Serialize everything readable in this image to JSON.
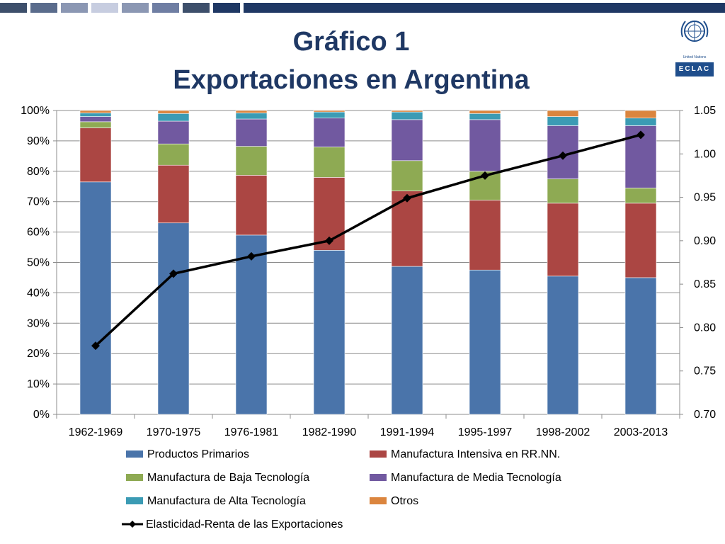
{
  "header": {
    "bar_colors": [
      "#3d4f6b",
      "#5a6c8c",
      "#8b97b3",
      "#c7cde0",
      "#8b97b3",
      "#6f7ea3",
      "#3d4f6b",
      "#1f3864",
      "#1f3864"
    ],
    "logo_caption": "United Nations",
    "logo_label": "ECLAC"
  },
  "title": {
    "line1": "Gráfico 1",
    "line2": "Exportaciones en Argentina"
  },
  "chart_data": {
    "type": "bar",
    "stacked": true,
    "categories": [
      "1962-1969",
      "1970-1975",
      "1976-1981",
      "1982-1990",
      "1991-1994",
      "1995-1997",
      "1998-2002",
      "2003-2013"
    ],
    "series": [
      {
        "name": "Productos Primarios",
        "color": "#4a74aa",
        "values": [
          76.5,
          63,
          59,
          54,
          48.7,
          47.5,
          45.5,
          45
        ]
      },
      {
        "name": "Manufactura Intensiva en RR.NN.",
        "color": "#ab4643",
        "values": [
          17.8,
          19,
          19.7,
          24,
          24.8,
          23,
          24,
          24.5
        ]
      },
      {
        "name": "Manufactura de Baja Tecnología",
        "color": "#8eaa53",
        "values": [
          2,
          7,
          9.5,
          10,
          10,
          9.5,
          8,
          5
        ]
      },
      {
        "name": "Manufactura de Media Tecnología",
        "color": "#7159a0",
        "values": [
          1.7,
          7.5,
          9,
          9.5,
          13.5,
          17,
          17.5,
          20.5
        ]
      },
      {
        "name": "Manufactura de Alta Tecnología",
        "color": "#3b9bb4",
        "values": [
          1.2,
          2.5,
          2,
          2,
          2.5,
          2,
          3,
          2.5
        ]
      },
      {
        "name": "Otros",
        "color": "#db853e",
        "values": [
          0.8,
          1,
          0.8,
          0.5,
          0.5,
          1,
          2,
          2.5
        ]
      }
    ],
    "line_series": {
      "name": "Elasticidad-Renta de las Exportaciones",
      "color": "#000000",
      "axis": "right",
      "values": [
        0.779,
        0.862,
        0.882,
        0.9,
        0.949,
        0.975,
        0.998,
        1.022
      ]
    },
    "y_left": {
      "min": 0,
      "max": 100,
      "step": 10,
      "tick_labels": [
        "0%",
        "10%",
        "20%",
        "30%",
        "40%",
        "50%",
        "60%",
        "70%",
        "80%",
        "90%",
        "100%"
      ]
    },
    "y_right": {
      "min": 0.7,
      "max": 1.05,
      "step": 0.05,
      "tick_labels": [
        "0.70",
        "0.75",
        "0.80",
        "0.85",
        "0.90",
        "0.95",
        "1.00",
        "1.05"
      ]
    },
    "grid": true,
    "legend_position": "bottom"
  },
  "legend": {
    "items": [
      {
        "label": "Productos Primarios",
        "color": "#4a74aa"
      },
      {
        "label": "Manufactura Intensiva en RR.NN.",
        "color": "#ab4643"
      },
      {
        "label": "Manufactura de Baja Tecnología",
        "color": "#8eaa53"
      },
      {
        "label": "Manufactura de Media Tecnología",
        "color": "#7159a0"
      },
      {
        "label": "Manufactura de Alta Tecnología",
        "color": "#3b9bb4"
      },
      {
        "label": "Otros",
        "color": "#db853e"
      }
    ],
    "line_label": "Elasticidad-Renta de las Exportaciones"
  }
}
